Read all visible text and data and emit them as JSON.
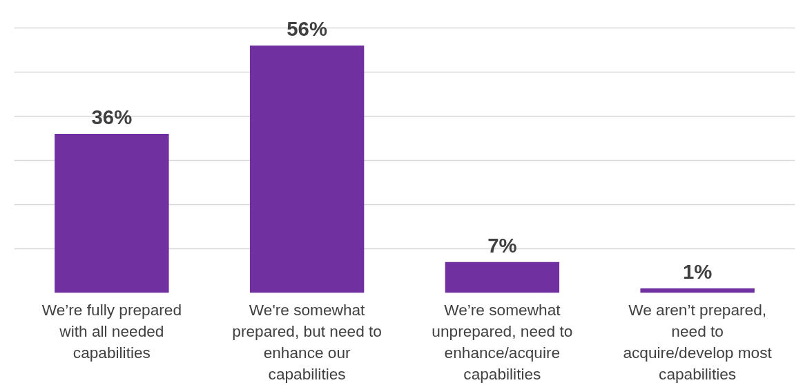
{
  "chart_data": {
    "type": "bar",
    "categories": [
      "We’re fully prepared with all needed capabilities",
      "We're somewhat prepared, but need to enhance our capabilities",
      "We’re somewhat unprepared, need to enhance/acquire capabilities",
      "We aren’t prepared, need to acquire/develop most capabilities"
    ],
    "values": [
      36,
      56,
      7,
      1
    ],
    "value_labels": [
      "36%",
      "56%",
      "7%",
      "1%"
    ],
    "color": "#7030a0",
    "grid": "y",
    "tick_labels": "x"
  }
}
